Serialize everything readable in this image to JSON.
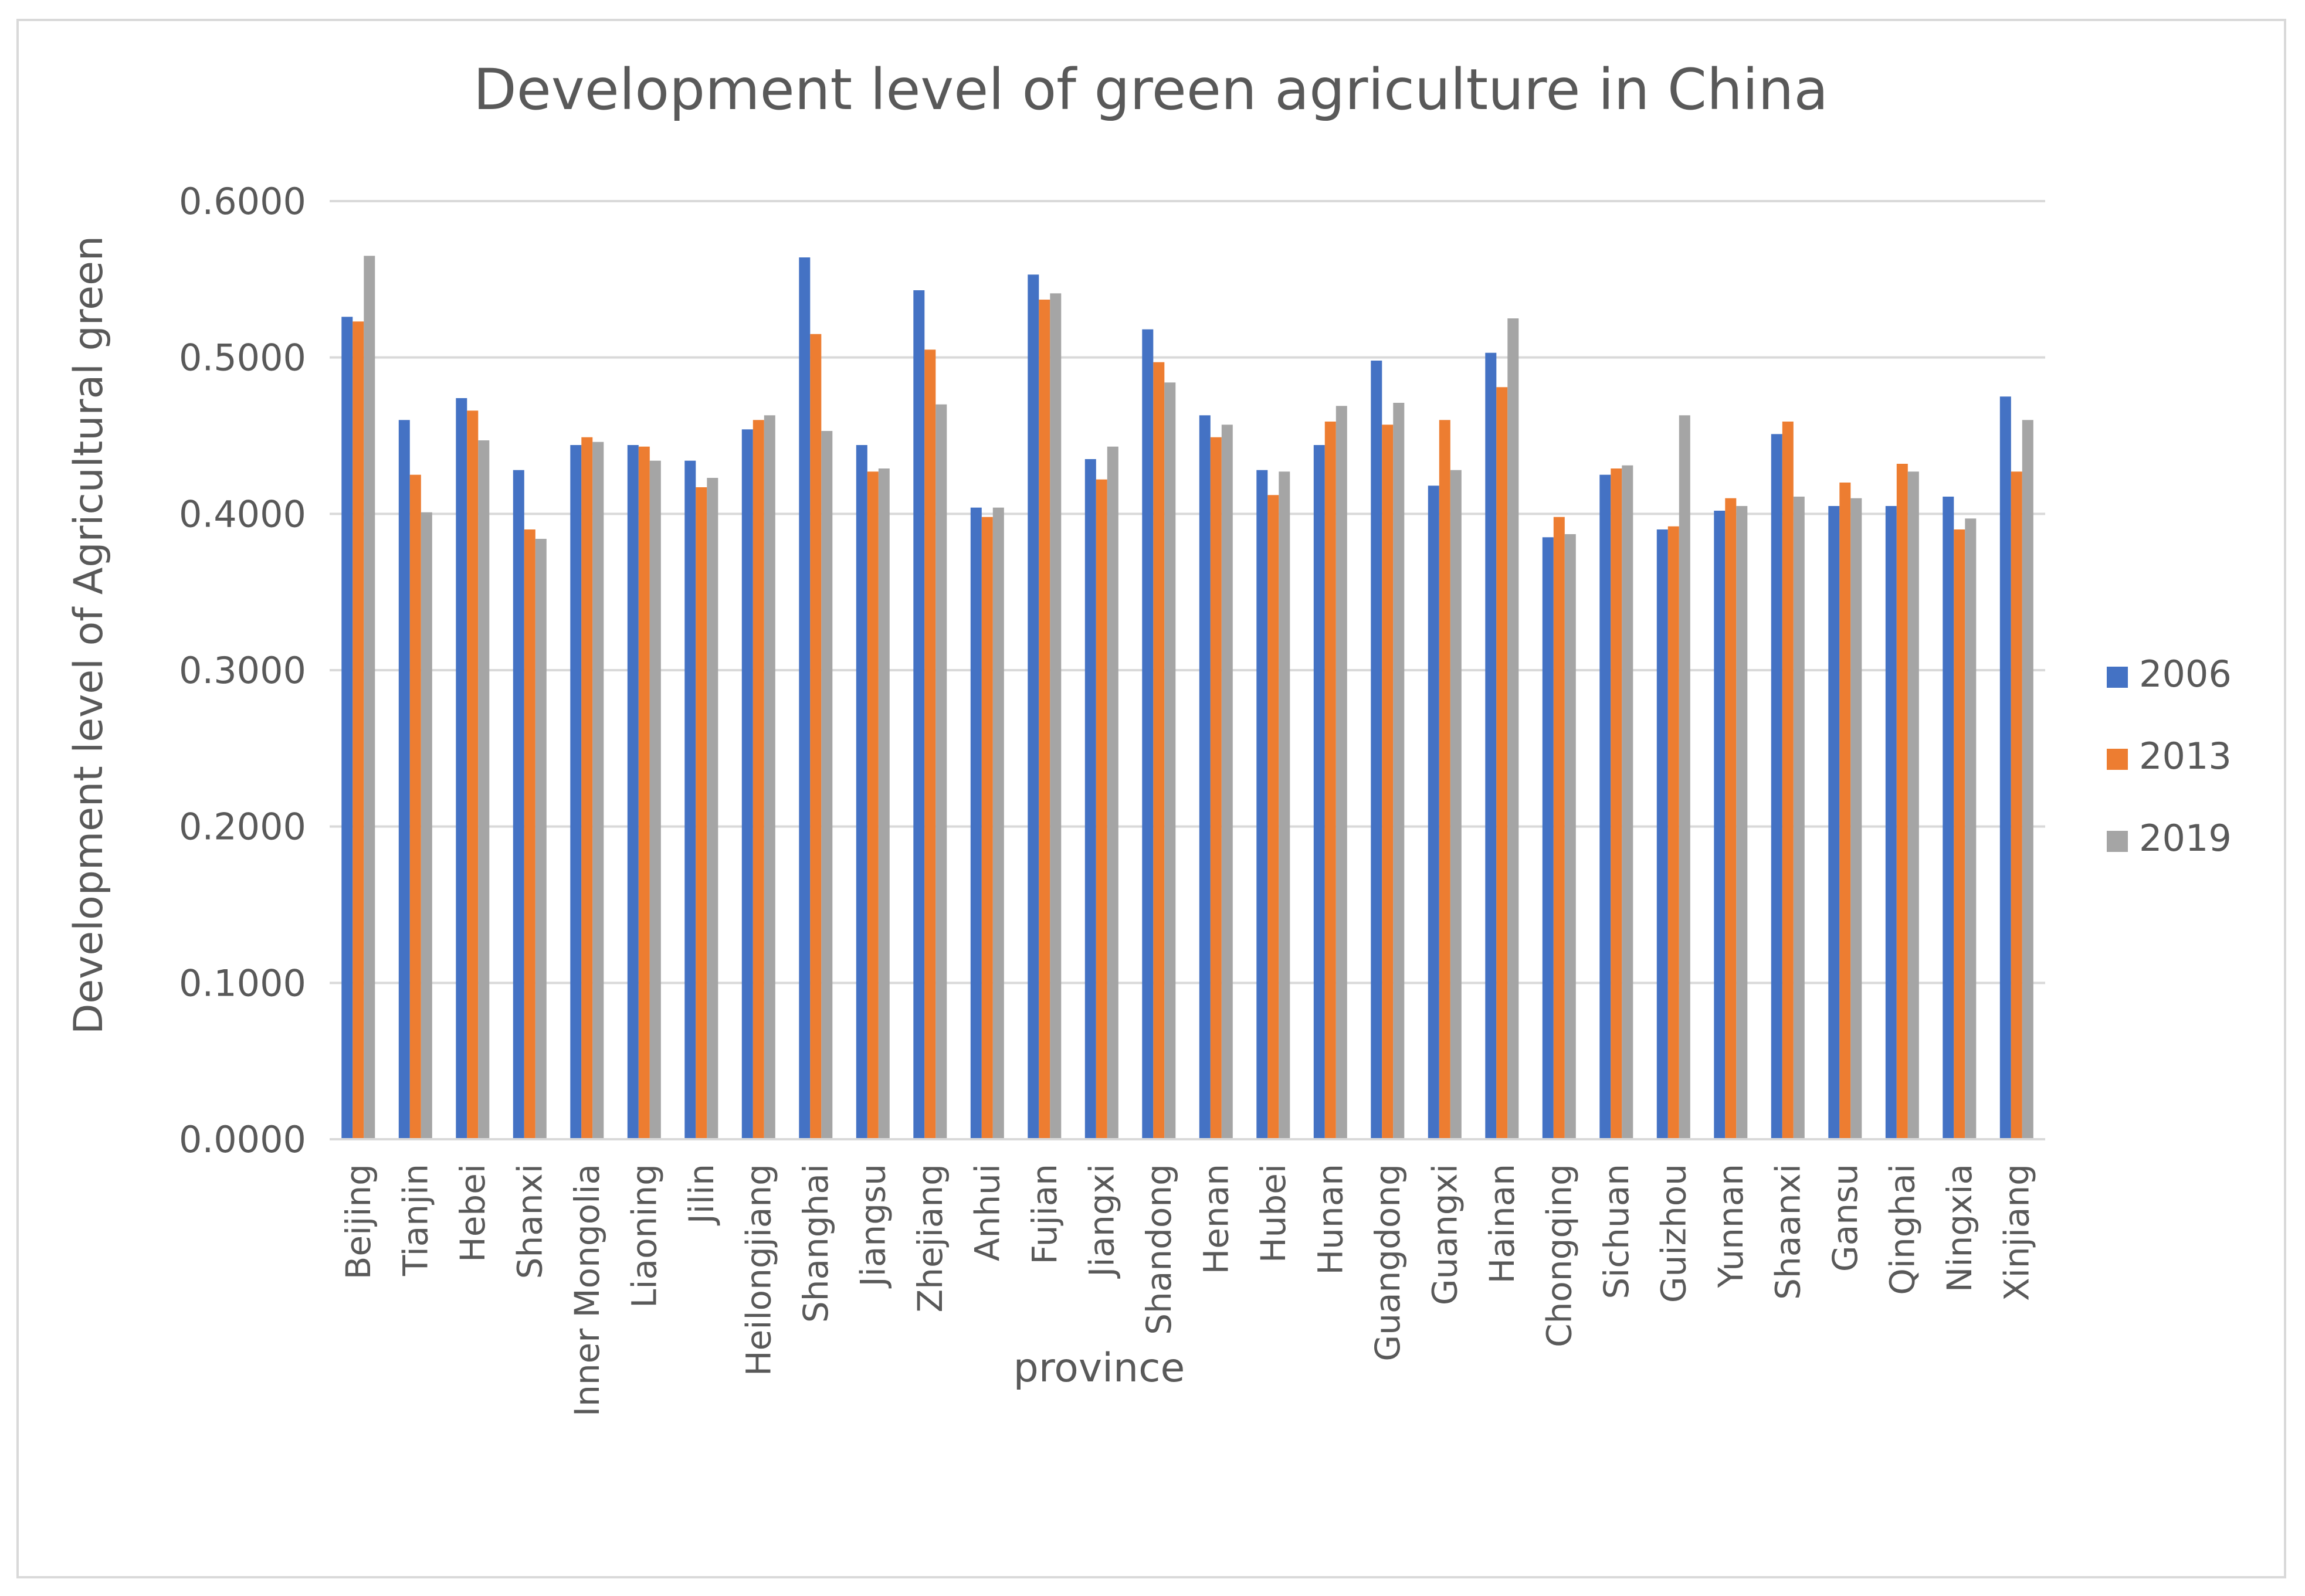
{
  "chart_data": {
    "type": "bar",
    "title": "Development level of green agriculture in China",
    "xlabel": "province",
    "ylabel": "Development level of Agricultural green",
    "ylim": [
      0,
      0.6
    ],
    "yticks": [
      "0.0000",
      "0.1000",
      "0.2000",
      "0.3000",
      "0.4000",
      "0.5000",
      "0.6000"
    ],
    "grid": true,
    "legend": "right",
    "categories": [
      "Beijing",
      "Tianjin",
      "Hebei",
      "Shanxi",
      "Inner Mongolia",
      "Liaoning",
      "Jilin",
      "Heilongjiang",
      "Shanghai",
      "Jiangsu",
      "Zhejiang",
      "Anhui",
      "Fujian",
      "Jiangxi",
      "Shandong",
      "Henan",
      "Hubei",
      "Hunan",
      "Guangdong",
      "Guangxi",
      "Hainan",
      "Chongqing",
      "Sichuan",
      "Guizhou",
      "Yunnan",
      "Shaanxi",
      "Gansu",
      "Qinghai",
      "Ningxia",
      "Xinjiang"
    ],
    "series": [
      {
        "name": "2006",
        "color": "#4472c4",
        "values": [
          0.526,
          0.46,
          0.474,
          0.428,
          0.444,
          0.444,
          0.434,
          0.454,
          0.564,
          0.444,
          0.543,
          0.404,
          0.553,
          0.435,
          0.518,
          0.463,
          0.428,
          0.444,
          0.498,
          0.418,
          0.503,
          0.385,
          0.425,
          0.39,
          0.402,
          0.451,
          0.405,
          0.405,
          0.411,
          0.475
        ]
      },
      {
        "name": "2013",
        "color": "#ed7d31",
        "values": [
          0.523,
          0.425,
          0.466,
          0.39,
          0.449,
          0.443,
          0.417,
          0.46,
          0.515,
          0.427,
          0.505,
          0.398,
          0.537,
          0.422,
          0.497,
          0.449,
          0.412,
          0.459,
          0.457,
          0.46,
          0.481,
          0.398,
          0.429,
          0.392,
          0.41,
          0.459,
          0.42,
          0.432,
          0.39,
          0.427
        ]
      },
      {
        "name": "2019",
        "color": "#a5a5a5",
        "values": [
          0.565,
          0.401,
          0.447,
          0.384,
          0.446,
          0.434,
          0.423,
          0.463,
          0.453,
          0.429,
          0.47,
          0.404,
          0.541,
          0.443,
          0.484,
          0.457,
          0.427,
          0.469,
          0.471,
          0.428,
          0.525,
          0.387,
          0.431,
          0.463,
          0.405,
          0.411,
          0.41,
          0.427,
          0.397,
          0.46
        ]
      }
    ]
  }
}
